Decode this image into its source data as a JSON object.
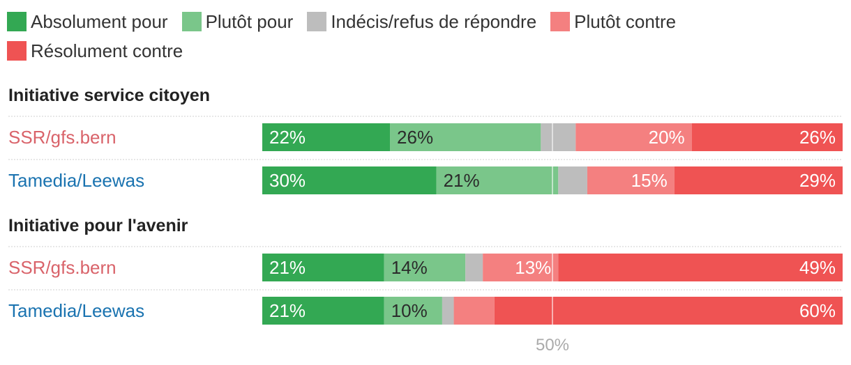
{
  "chart_data": {
    "type": "bar",
    "orientation": "horizontal-stacked",
    "legend_position": "top",
    "categories": [
      "Absolument pour",
      "Plutôt pour",
      "Indécis/refus de répondre",
      "Plutôt contre",
      "Résolument contre"
    ],
    "colors": [
      "#33a853",
      "#7ac68a",
      "#bdbdbd",
      "#f48080",
      "#ef5353"
    ],
    "groups": [
      {
        "title": "Initiative service citoyen",
        "rows": [
          {
            "label": "SSR/gfs.bern",
            "label_color": "#d9636a",
            "values": [
              22,
              26,
              6,
              20,
              26
            ],
            "labels": [
              "22%",
              "26%",
              "",
              "20%",
              "26%"
            ]
          },
          {
            "label": "Tamedia/Leewas",
            "label_color": "#1a73b0",
            "values": [
              30,
              21,
              5,
              15,
              29
            ],
            "labels": [
              "30%",
              "21%",
              "",
              "15%",
              "29%"
            ]
          }
        ]
      },
      {
        "title": "Initiative pour l'avenir",
        "rows": [
          {
            "label": "SSR/gfs.bern",
            "label_color": "#d9636a",
            "values": [
              21,
              14,
              3,
              13,
              49
            ],
            "labels": [
              "21%",
              "14%",
              "",
              "13%",
              "49%"
            ]
          },
          {
            "label": "Tamedia/Leewas",
            "label_color": "#1a73b0",
            "values": [
              21,
              10,
              2,
              7,
              60
            ],
            "labels": [
              "21%",
              "10%",
              "",
              "",
              "60%"
            ]
          }
        ]
      }
    ],
    "xlim": [
      0,
      100
    ],
    "reference_line": {
      "value": 50,
      "label": "50%"
    }
  }
}
